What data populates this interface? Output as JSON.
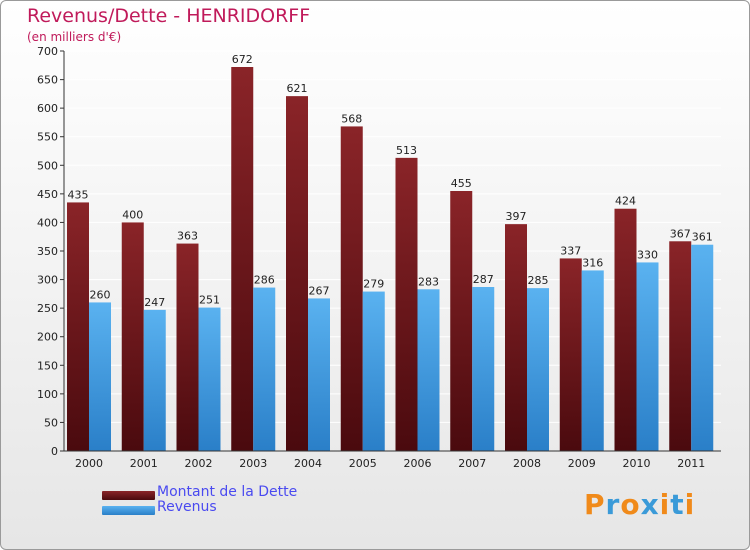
{
  "chart_data": {
    "type": "bar",
    "title": "Revenus/Dette - HENRIDORFF",
    "subtitle": "(en milliers d'€)",
    "categories": [
      "2000",
      "2001",
      "2002",
      "2003",
      "2004",
      "2005",
      "2006",
      "2007",
      "2008",
      "2009",
      "2010",
      "2011"
    ],
    "series": [
      {
        "name": "Montant de la Dette",
        "color": "#7a1a1e",
        "values": [
          435,
          400,
          363,
          672,
          621,
          568,
          513,
          455,
          397,
          337,
          424,
          367
        ]
      },
      {
        "name": "Revenus",
        "color": "#4aa3e8",
        "values": [
          260,
          247,
          251,
          286,
          267,
          279,
          283,
          287,
          285,
          316,
          330,
          361
        ]
      }
    ],
    "ylim": [
      0,
      700
    ],
    "yticks": [
      0,
      50,
      100,
      150,
      200,
      250,
      300,
      350,
      400,
      450,
      500,
      550,
      600,
      650,
      700
    ],
    "grid": true,
    "legend": "bottom-left",
    "xlabel": "",
    "ylabel": ""
  },
  "logo": {
    "text": "Proxiti",
    "letter_colors": [
      "#f08a1a",
      "#3a9ad8",
      "#f08a1a",
      "#3a9ad8",
      "#f08a1a",
      "#3a9ad8",
      "#f08a1a"
    ]
  }
}
